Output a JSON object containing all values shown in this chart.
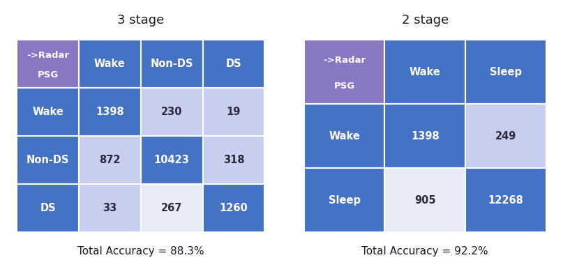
{
  "title_3stage": "3 stage",
  "title_2stage": "2 stage",
  "accuracy_3stage": "Total Accuracy = 88.3%",
  "accuracy_2stage": "Total Accuracy = 92.2%",
  "col_headers_3": [
    "Wake",
    "Non-DS",
    "DS"
  ],
  "row_headers_3": [
    "Wake",
    "Non-DS",
    "DS"
  ],
  "matrix_3": [
    [
      1398,
      230,
      19
    ],
    [
      872,
      10423,
      318
    ],
    [
      33,
      267,
      1260
    ]
  ],
  "col_headers_2": [
    "Wake",
    "Sleep"
  ],
  "row_headers_2": [
    "Wake",
    "Sleep"
  ],
  "matrix_2": [
    [
      1398,
      249
    ],
    [
      905,
      12268
    ]
  ],
  "color_header_corner": "#8878C3",
  "color_header_blue": "#4472C4",
  "color_diag_blue": "#4472C4",
  "color_off_light": "#C8CEED",
  "color_off_verylight": "#E8EAF6",
  "color_bg": "#ffffff",
  "color_text_white": "#ffffff",
  "color_text_dark": "#2a2a3a",
  "title_fontsize": 13,
  "header_fontsize": 10.5,
  "cell_fontsize": 10.5,
  "accuracy_fontsize": 11,
  "cell_colors_3": [
    [
      "diag",
      "light",
      "light"
    ],
    [
      "light",
      "diag",
      "light"
    ],
    [
      "light",
      "verylight",
      "diag"
    ]
  ],
  "cell_colors_2": [
    [
      "diag",
      "light"
    ],
    [
      "verylight",
      "diag"
    ]
  ]
}
